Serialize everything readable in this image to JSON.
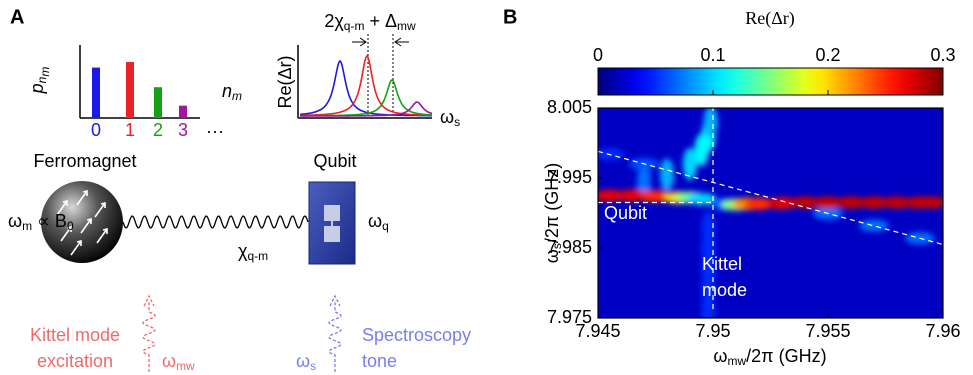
{
  "panel_a": {
    "label": "A",
    "occupation": {
      "y_label": {
        "base": "p",
        "sub": "n",
        "subsub": "m"
      },
      "x_label": {
        "base": "n",
        "sub": "m"
      },
      "categories": [
        "0",
        "1",
        "2",
        "3"
      ],
      "values": [
        0.9,
        1,
        0.55,
        0.22
      ],
      "colors": [
        "#1a1ae6",
        "#ee2222",
        "#16a016",
        "#a0179e"
      ],
      "ellipsis": "···"
    },
    "spectrum": {
      "splitting": {
        "a": "2χ",
        "a_sub": "q-m",
        "b": " + Δ",
        "b_sub": "mw"
      },
      "y_label": "Re(Δr)",
      "x_label": {
        "base": "ω",
        "sub": "s"
      }
    },
    "ferromagnet": {
      "title": "Ferromagnet",
      "frequency": {
        "base": "ω",
        "sub": "m",
        "rest": " ∝ B",
        "rest_sub": "0"
      }
    },
    "coupling": {
      "base": "χ",
      "sub": "q-m"
    },
    "qubit": {
      "title": "Qubit",
      "frequency": {
        "base": "ω",
        "sub": "q"
      }
    },
    "drive": {
      "lines": [
        "Kittel mode",
        "excitation"
      ],
      "tone": {
        "base": "ω",
        "sub": "mw"
      }
    },
    "probe": {
      "lines": [
        "Spectroscopy",
        "tone"
      ],
      "tone": {
        "base": "ω",
        "sub": "s"
      }
    }
  },
  "chart_data": {
    "type": "heatmap",
    "label": "B",
    "colorbar_label": "Re(Δr)",
    "colormap": "jet",
    "clim": [
      0,
      0.3
    ],
    "cticks": [
      0,
      0.1,
      0.2,
      0.3
    ],
    "x_label": {
      "base": "ω",
      "sub": "mw",
      "rest": "/2π (GHz)"
    },
    "y_label": {
      "base": "ω",
      "sub": "s",
      "rest": "/2π (GHz)"
    },
    "xlim": [
      7.945,
      7.96
    ],
    "xticks": [
      7.945,
      7.95,
      7.955,
      7.96
    ],
    "ylim": [
      7.975,
      8.005
    ],
    "yticks": [
      7.975,
      7.985,
      7.995,
      8.005
    ],
    "background": 0.02,
    "ridges": [
      {
        "x": [
          7.9498,
          7.9498,
          7.9498,
          7.9498,
          7.9498
        ],
        "y": [
          7.976,
          7.979,
          7.982,
          7.985,
          7.988
        ],
        "values": [
          0.05,
          0.05,
          0.05,
          0.05,
          0.05
        ]
      },
      {
        "x": [
          7.9455,
          7.947,
          7.955,
          7.957,
          7.959
        ],
        "y": [
          7.9984,
          7.997,
          7.9899,
          7.9882,
          7.9864
        ],
        "values": [
          0.05,
          0.06,
          0.07,
          0.07,
          0.07
        ]
      },
      {
        "x": [
          7.947,
          7.948,
          7.949,
          7.9495,
          7.9498,
          7.9499
        ],
        "y": [
          7.9945,
          7.9955,
          7.997,
          7.999,
          8.001,
          8.003
        ],
        "values": [
          0.07,
          0.09,
          0.1,
          0.11,
          0.11,
          0.09
        ]
      },
      {
        "x": [
          7.9455,
          7.9465,
          7.9475,
          7.9485,
          7.949,
          7.9495,
          7.9505,
          7.951,
          7.9515,
          7.952,
          7.953,
          7.954,
          7.955,
          7.956,
          7.957,
          7.958,
          7.959,
          7.9595
        ],
        "y": [
          7.9925,
          7.9925,
          7.9924,
          7.9922,
          7.9922,
          7.992,
          7.9912,
          7.9912,
          7.9913,
          7.9913,
          7.9914,
          7.9915,
          7.9915,
          7.9915,
          7.9915,
          7.9915,
          7.9915,
          7.9915
        ],
        "values": [
          0.27,
          0.27,
          0.25,
          0.2,
          0.15,
          0.1,
          0.06,
          0.15,
          0.22,
          0.25,
          0.27,
          0.28,
          0.28,
          0.28,
          0.28,
          0.28,
          0.28,
          0.28
        ]
      }
    ],
    "guides": [
      {
        "x": [
          7.945,
          7.95
        ],
        "y": [
          7.9915,
          7.9915
        ]
      },
      {
        "x": [
          7.95,
          7.95
        ],
        "y": [
          7.975,
          8.005
        ]
      },
      {
        "x": [
          7.945,
          7.96
        ],
        "y": [
          7.9988,
          7.9855
        ]
      }
    ],
    "annotations": [
      "Qubit",
      "Kittel",
      "mode"
    ]
  }
}
